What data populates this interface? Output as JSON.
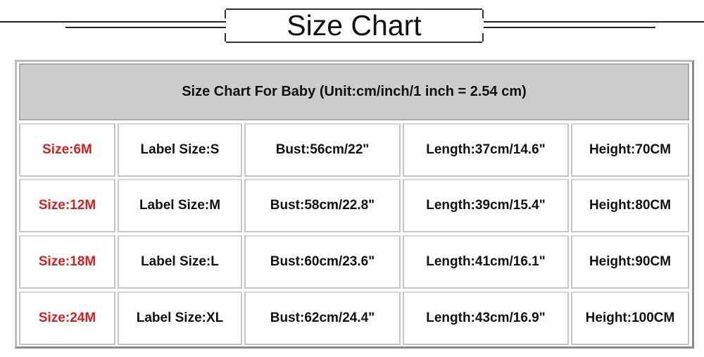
{
  "title": "Size Chart",
  "table": {
    "caption": "Size Chart For Baby (Unit:cm/inch/1 inch = 2.54 cm)",
    "rows": [
      [
        "Size:6M",
        "Label Size:S",
        "Bust:56cm/22\"",
        "Length:37cm/14.6\"",
        "Height:70CM"
      ],
      [
        "Size:12M",
        "Label Size:M",
        "Bust:58cm/22.8\"",
        "Length:39cm/15.4\"",
        "Height:80CM"
      ],
      [
        "Size:18M",
        "Label Size:L",
        "Bust:60cm/23.6\"",
        "Length:41cm/16.1\"",
        "Height:90CM"
      ],
      [
        "Size:24M",
        "Label Size:XL",
        "Bust:62cm/24.4\"",
        "Length:43cm/16.9\"",
        "Height:100CM"
      ]
    ]
  },
  "colors": {
    "size_text": "#d42020",
    "header_bg": "#cccccc",
    "text": "#111111"
  }
}
